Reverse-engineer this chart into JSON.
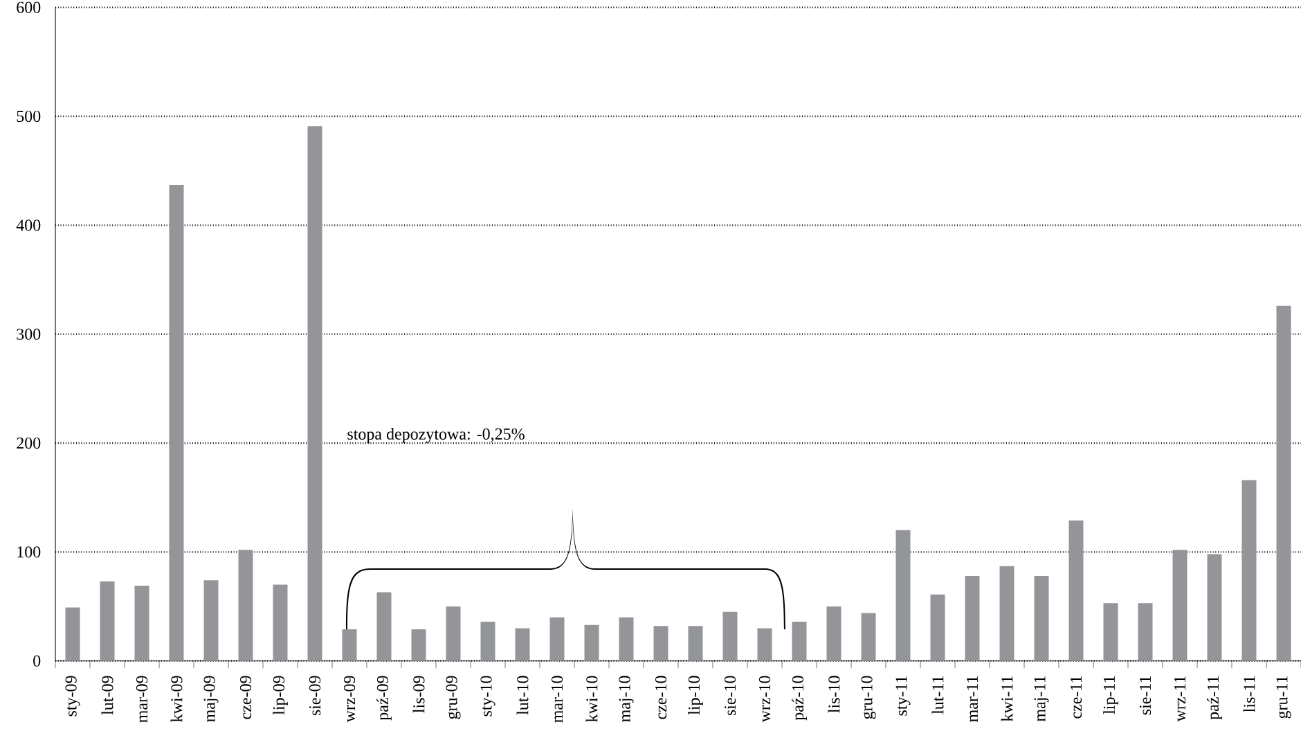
{
  "chart_data": {
    "type": "bar",
    "categories": [
      "sty-09",
      "lut-09",
      "mar-09",
      "kwi-09",
      "maj-09",
      "cze-09",
      "lip-09",
      "sie-09",
      "wrz-09",
      "paź-09",
      "lis-09",
      "gru-09",
      "sty-10",
      "lut-10",
      "mar-10",
      "kwi-10",
      "maj-10",
      "cze-10",
      "lip-10",
      "sie-10",
      "wrz-10",
      "paź-10",
      "lis-10",
      "gru-10",
      "sty-11",
      "lut-11",
      "mar-11",
      "kwi-11",
      "maj-11",
      "cze-11",
      "lip-11",
      "sie-11",
      "wrz-11",
      "paź-11",
      "lis-11",
      "gru-11"
    ],
    "values": [
      49,
      73,
      69,
      437,
      74,
      102,
      70,
      491,
      29,
      63,
      29,
      50,
      36,
      30,
      40,
      33,
      40,
      32,
      32,
      45,
      30,
      36,
      50,
      44,
      120,
      61,
      78,
      87,
      78,
      129,
      53,
      53,
      102,
      98,
      166,
      326
    ],
    "color": "#939598",
    "ylim": [
      0,
      600
    ],
    "yticks": [
      0,
      100,
      200,
      300,
      400,
      500,
      600
    ],
    "grid": "y",
    "annotations": [
      "stopa depozytowa: -0,25%"
    ]
  }
}
